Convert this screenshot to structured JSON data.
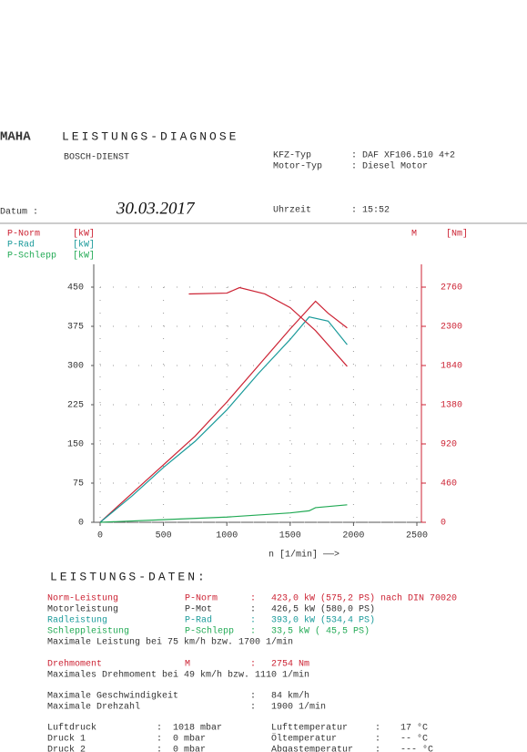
{
  "header": {
    "logo": "MAHA",
    "title": "LEISTUNGS-DIAGNOSE",
    "dealer": "BOSCH-DIENST",
    "fields": [
      [
        "KFZ-Typ",
        ": DAF XF106.510   4+2"
      ],
      [
        "Motor-Typ",
        ": Diesel Motor"
      ]
    ],
    "date_label": "Datum :",
    "date": "30.03.2017",
    "time_label": "Uhrzeit",
    "time": ": 15:52"
  },
  "chart_data": {
    "type": "line",
    "x_label": "n [1/min] ——>",
    "xlim": [
      0,
      2500
    ],
    "xticks": [
      0,
      500,
      1000,
      1500,
      2000,
      2500
    ],
    "ylim": [
      0,
      450
    ],
    "yticks": [
      0,
      75,
      150,
      225,
      300,
      375,
      450
    ],
    "y2lim": [
      0,
      2760
    ],
    "y2ticks": [
      0,
      460,
      920,
      1380,
      1840,
      2300,
      2760
    ],
    "grid": true,
    "series": [
      {
        "name": "P-Norm",
        "unit": "[kW]",
        "color": "#cc2233",
        "x": [
          0,
          250,
          500,
          750,
          1000,
          1250,
          1500,
          1700,
          1800,
          1950
        ],
        "values": [
          0,
          55,
          110,
          165,
          230,
          300,
          370,
          423,
          400,
          372
        ]
      },
      {
        "name": "P-Rad",
        "unit": "[kW]",
        "color": "#1a9a9a",
        "x": [
          0,
          250,
          500,
          750,
          1000,
          1250,
          1500,
          1650,
          1800,
          1950
        ],
        "values": [
          0,
          50,
          105,
          155,
          215,
          285,
          350,
          393,
          385,
          340
        ]
      },
      {
        "name": "P-Schlepp",
        "unit": "[kW]",
        "color": "#22aa55",
        "x": [
          0,
          500,
          1000,
          1500,
          1650,
          1700,
          1950
        ],
        "values": [
          0,
          5,
          10,
          18,
          22,
          28,
          33.5
        ]
      },
      {
        "name": "M",
        "unit": "[Nm]",
        "color": "#cc2233",
        "axis": "y2",
        "x": [
          700,
          1000,
          1100,
          1300,
          1500,
          1700,
          1950
        ],
        "values": [
          2680,
          2690,
          2754,
          2680,
          2520,
          2250,
          1830
        ]
      }
    ]
  },
  "data_section": {
    "title": "LEISTUNGS-DATEN:",
    "rows": [
      [
        "Norm-Leistung",
        "P-Norm",
        ":",
        "423,0 kW (575,2 PS) nach DIN 70020"
      ],
      [
        "Motorleistung",
        "P-Mot",
        ":",
        "426,5 kW (580,0 PS)"
      ],
      [
        "Radleistung",
        "P-Rad",
        ":",
        "393,0 kW (534,4 PS)"
      ],
      [
        "Schleppleistung",
        "P-Schlepp",
        ":",
        "33,5 kW ( 45,5 PS)"
      ],
      [
        "Maximale Leistung bei  75 km/h bzw.  1700 1/min"
      ],
      [
        "Drehmoment",
        "M",
        ":",
        "2754 Nm"
      ],
      [
        "Maximales Drehmoment bei  49 km/h bzw.  1110 1/min"
      ],
      [
        "Maximale Geschwindigkeit",
        ":",
        "84 km/h"
      ],
      [
        "Maximale Drehzahl",
        ":",
        "1900 1/min"
      ]
    ]
  },
  "ambient": [
    [
      "Luftdruck",
      ":",
      "1018 mbar",
      "Lufttemperatur",
      ":",
      "17 °C"
    ],
    [
      "Druck 1",
      ":",
      "0 mbar",
      "Öltemperatur",
      ":",
      "-- °C"
    ],
    [
      "Druck 2",
      ":",
      "0 mbar",
      "Abgastemperatur",
      ":",
      "--- °C"
    ]
  ]
}
